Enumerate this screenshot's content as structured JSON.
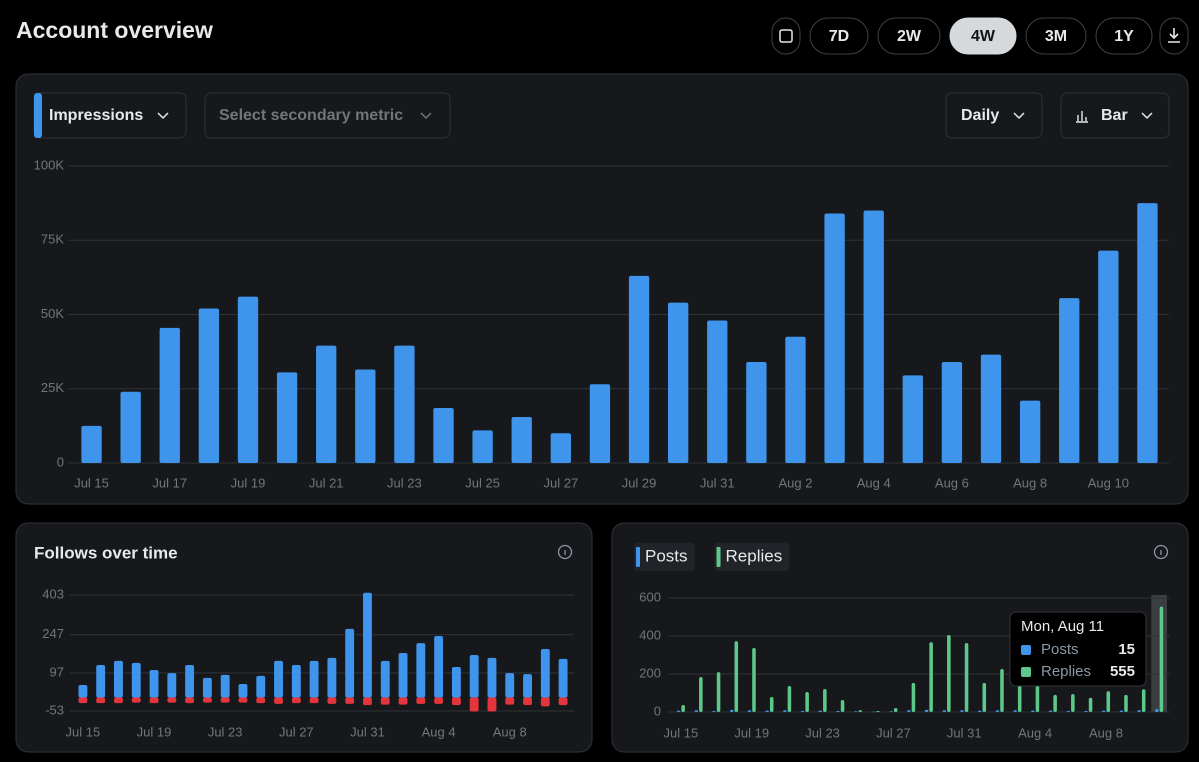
{
  "header": {
    "title": "Account overview",
    "ranges": [
      "7D",
      "2W",
      "4W",
      "3M",
      "1Y"
    ],
    "selected_range": "4W"
  },
  "controls": {
    "primary_metric": "Impressions",
    "secondary_metric": "Select secondary metric",
    "interval": "Daily",
    "chart_style": "Bar"
  },
  "chart_data": [
    {
      "type": "bar",
      "categories": [
        "Jul 15",
        null,
        "Jul 17",
        null,
        "Jul 19",
        null,
        "Jul 21",
        null,
        "Jul 23",
        null,
        "Jul 25",
        null,
        "Jul 27",
        null,
        "Jul 29",
        null,
        "Jul 31",
        null,
        "Aug 2",
        null,
        "Aug 4",
        null,
        "Aug 6",
        null,
        "Aug 8",
        null,
        "Aug 10",
        null
      ],
      "series": [
        {
          "color": "#3f94eb",
          "values": [
            12500,
            24000,
            45500,
            52000,
            56000,
            30500,
            39500,
            31500,
            39500,
            18500,
            11000,
            15500,
            10000,
            26500,
            63000,
            54000,
            48000,
            34000,
            42500,
            84000,
            85000,
            29500,
            34000,
            36500,
            21000,
            55500,
            71500,
            87500
          ]
        }
      ],
      "ylim": [
        0,
        100000
      ],
      "yticks": [
        0,
        {
          "value": 25000,
          "label": "25K"
        },
        {
          "value": 50000,
          "label": "50K"
        },
        {
          "value": 75000,
          "label": "75K"
        },
        {
          "value": 100000,
          "label": "100K"
        }
      ],
      "grid": true
    },
    {
      "type": "bar",
      "title": "Follows over time",
      "stacked": true,
      "categories": [
        "Jul 15",
        null,
        null,
        null,
        "Jul 19",
        null,
        null,
        null,
        "Jul 23",
        null,
        null,
        null,
        "Jul 27",
        null,
        null,
        null,
        "Jul 31",
        null,
        null,
        null,
        "Aug 4",
        null,
        null,
        null,
        "Aug 8",
        null,
        null,
        null
      ],
      "series": [
        {
          "color": "#3f94eb",
          "values": [
            49,
            128,
            144,
            136,
            108,
            96,
            128,
            77,
            89,
            53,
            85,
            144,
            128,
            144,
            156,
            270,
            412,
            144,
            175,
            214,
            242,
            120,
            167,
            156,
            96,
            92,
            191,
            152
          ]
        },
        {
          "color": "#e3353b",
          "values": [
            -22,
            -22,
            -22,
            -20,
            -22,
            -20,
            -22,
            -20,
            -20,
            -20,
            -22,
            -25,
            -22,
            -22,
            -25,
            -25,
            -30,
            -28,
            -28,
            -25,
            -25,
            -30,
            -55,
            -55,
            -28,
            -30,
            -35,
            -30
          ]
        }
      ],
      "ylim": [
        -53,
        420
      ],
      "yticks": [
        -53,
        97,
        247,
        403
      ],
      "grid": true
    },
    {
      "type": "bar",
      "stacked": false,
      "categories": [
        "Jul 15",
        null,
        null,
        null,
        "Jul 19",
        null,
        null,
        null,
        "Jul 23",
        null,
        null,
        null,
        "Jul 27",
        null,
        null,
        null,
        "Jul 31",
        null,
        null,
        null,
        "Aug 4",
        null,
        null,
        null,
        "Aug 8",
        null,
        null,
        null
      ],
      "series": [
        {
          "name": "Posts",
          "color": "#3f94eb",
          "values": [
            8,
            10,
            6,
            12,
            10,
            8,
            10,
            6,
            8,
            6,
            4,
            2,
            4,
            10,
            12,
            10,
            10,
            8,
            10,
            10,
            8,
            8,
            6,
            6,
            8,
            8,
            10,
            15
          ]
        },
        {
          "name": "Replies",
          "color": "#5cc98a",
          "values": [
            37,
            184,
            210,
            373,
            337,
            79,
            137,
            105,
            121,
            63,
            10,
            5,
            21,
            153,
            368,
            405,
            363,
            153,
            226,
            260,
            150,
            90,
            95,
            75,
            110,
            90,
            120,
            555
          ]
        }
      ],
      "ylim": [
        0,
        600
      ],
      "yticks": [
        0,
        200,
        400,
        600
      ],
      "grid": true,
      "legend": "top-left",
      "tooltip": {
        "title": "Mon, Aug 11",
        "rows": [
          {
            "name": "Posts",
            "value": 15
          },
          {
            "name": "Replies",
            "value": 555
          }
        ]
      }
    }
  ]
}
